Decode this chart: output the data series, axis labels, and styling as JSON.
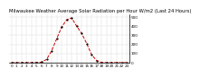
{
  "title": "Milwaukee Weather Average Solar Radiation per Hour W/m2 (Last 24 Hours)",
  "hours": [
    0,
    1,
    2,
    3,
    4,
    5,
    6,
    7,
    8,
    9,
    10,
    11,
    12,
    13,
    14,
    15,
    16,
    17,
    18,
    19,
    20,
    21,
    22,
    23
  ],
  "values": [
    0,
    0,
    0,
    0,
    0,
    2,
    5,
    35,
    130,
    260,
    390,
    470,
    490,
    400,
    320,
    210,
    85,
    22,
    2,
    0,
    0,
    0,
    0,
    0
  ],
  "line_color": "#cc0000",
  "line_style": "--",
  "marker": ".",
  "marker_color": "#000000",
  "background_color": "#ffffff",
  "grid_color": "#888888",
  "yticks": [
    0,
    100,
    200,
    300,
    400,
    500
  ],
  "ylim": [
    0,
    530
  ],
  "xlim": [
    -0.5,
    23.5
  ],
  "title_fontsize": 3.8,
  "tick_fontsize": 3.0,
  "linewidth": 0.7,
  "markersize": 1.2
}
